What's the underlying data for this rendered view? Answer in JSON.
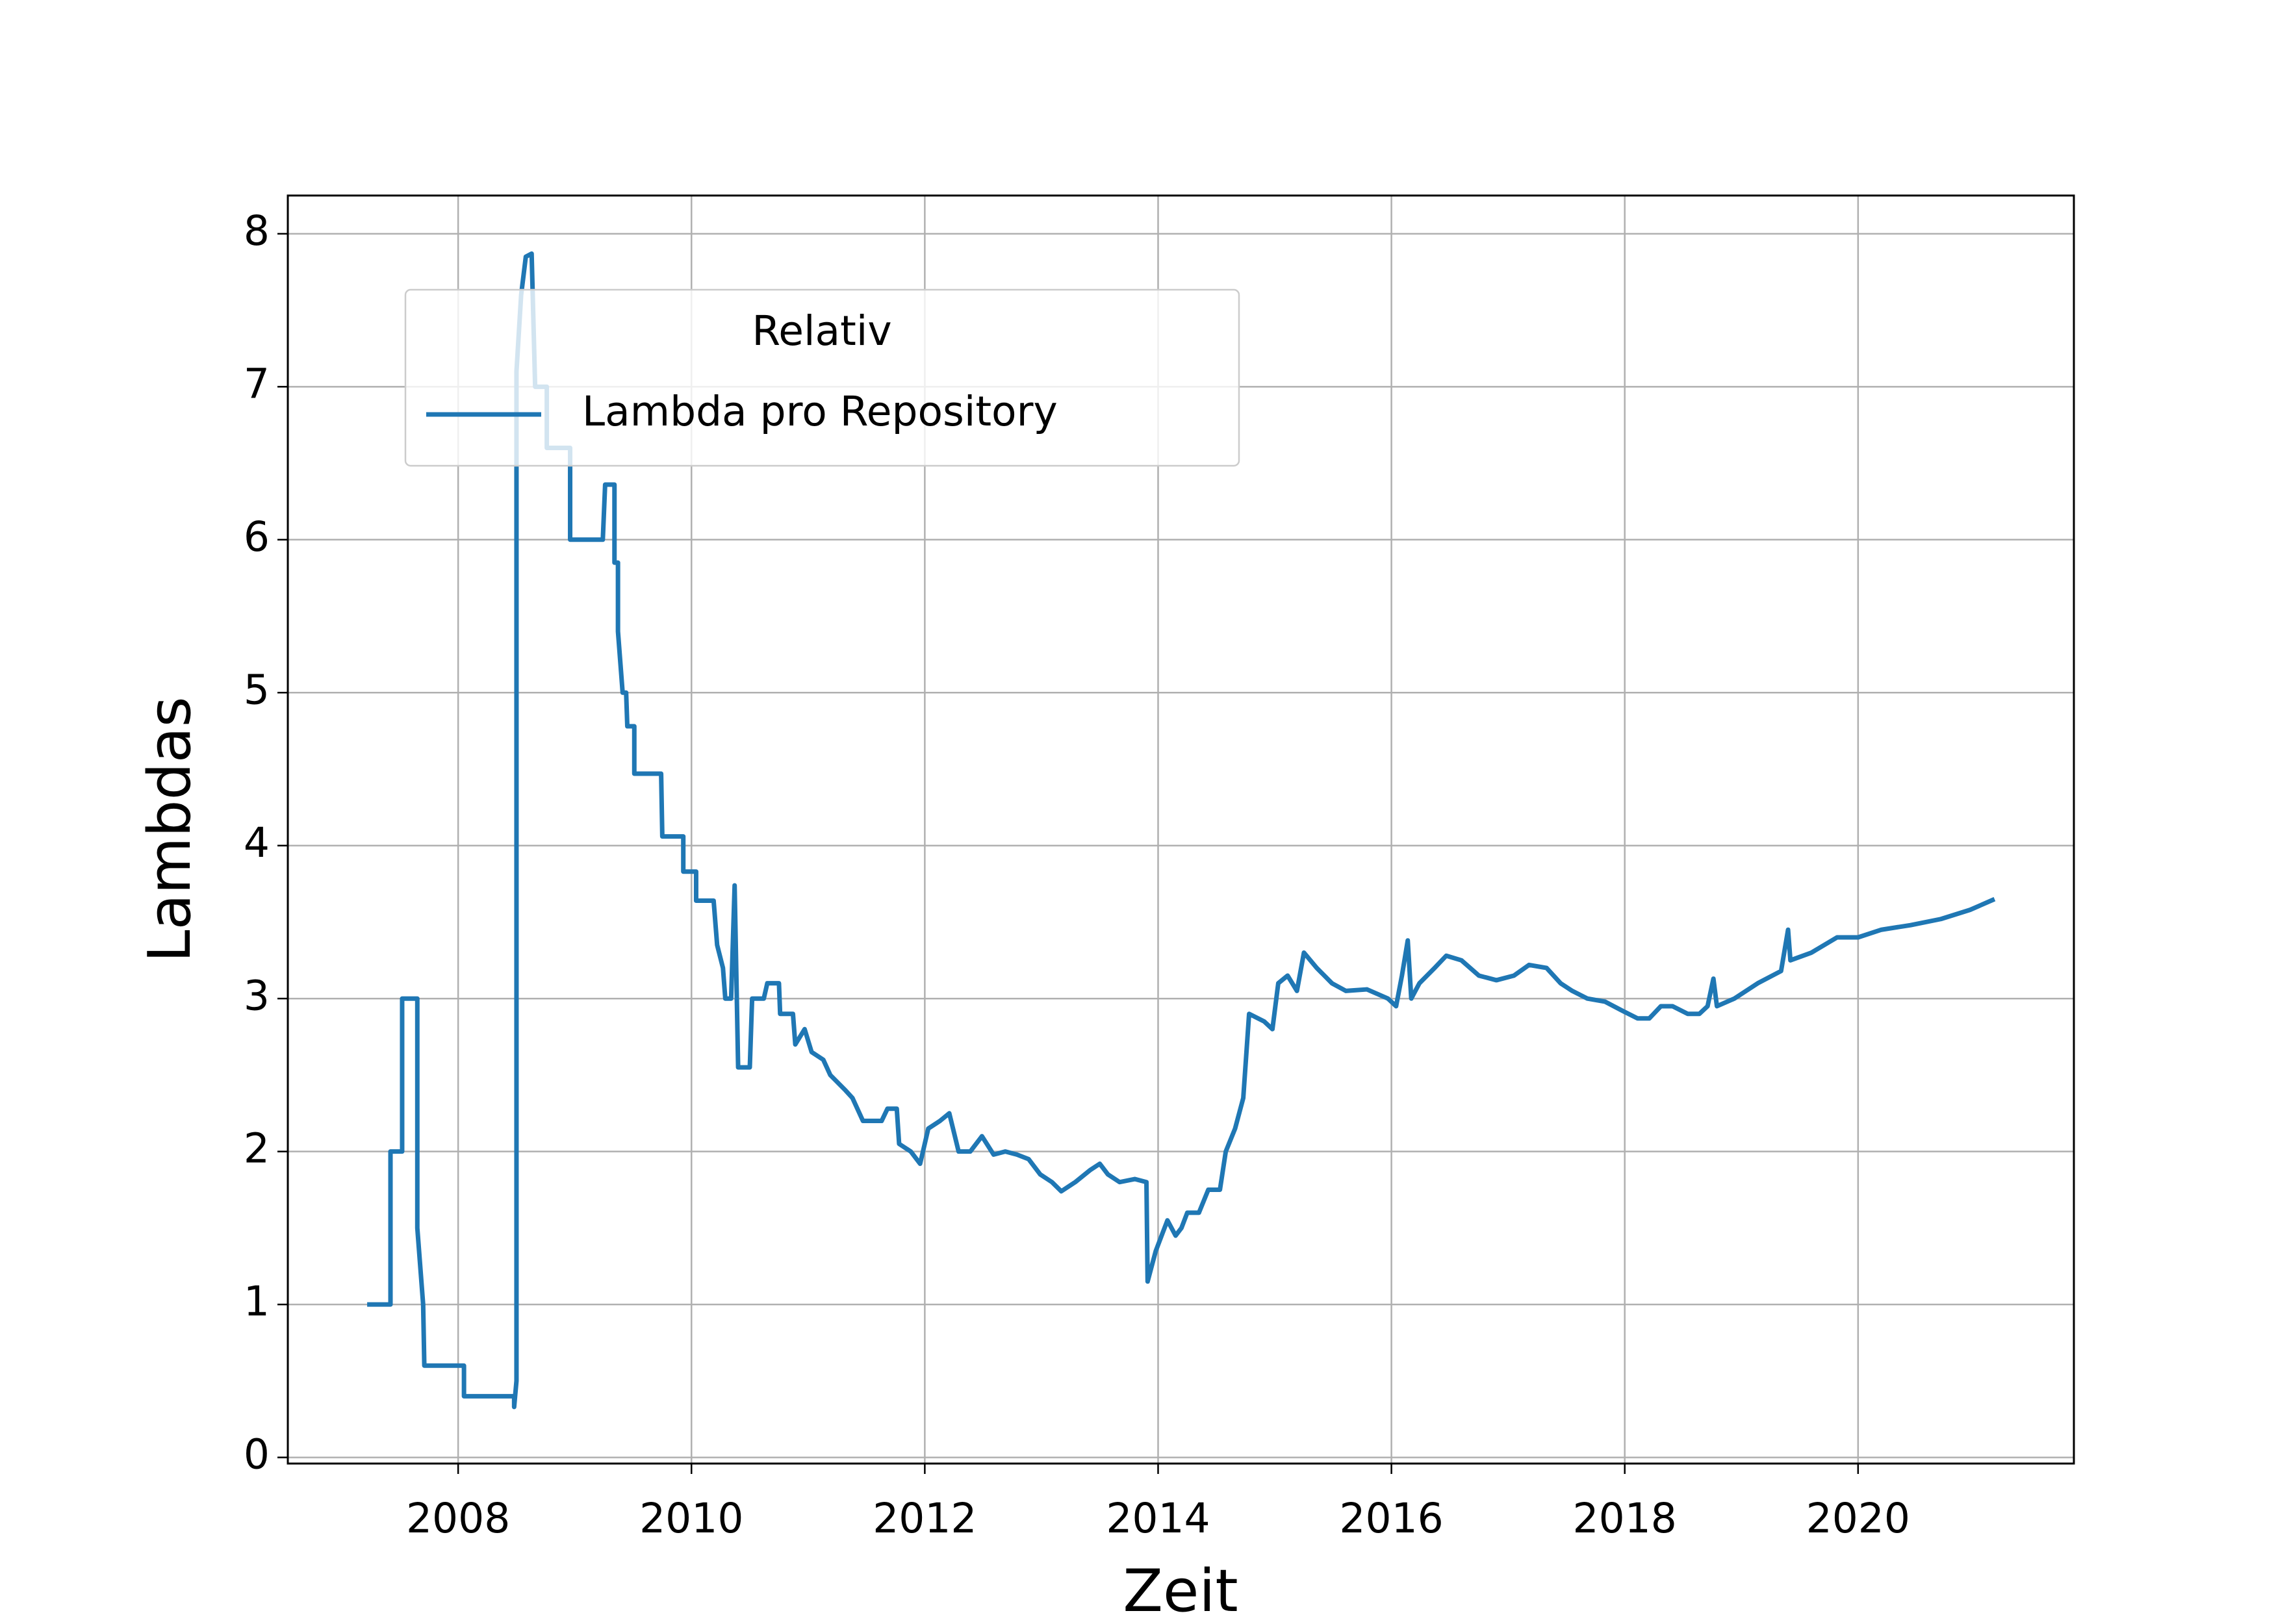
{
  "chart_data": {
    "type": "line",
    "xlabel": "Zeit",
    "ylabel": "Lambdas",
    "legend_title": "Relativ",
    "legend_loc": "upper left",
    "grid": true,
    "xlim": [
      2006.54,
      2021.85
    ],
    "ylim": [
      -0.04,
      8.25
    ],
    "xticks": [
      2008,
      2010,
      2012,
      2014,
      2016,
      2018,
      2020
    ],
    "yticks": [
      0,
      1,
      2,
      3,
      4,
      5,
      6,
      7,
      8
    ],
    "x": [
      2007.22,
      2007.42,
      2007.42,
      2007.52,
      2007.52,
      2007.65,
      2007.65,
      2007.7,
      2007.71,
      2008.05,
      2008.05,
      2008.48,
      2008.48,
      2008.5,
      2008.5,
      2008.54,
      2008.58,
      2008.63,
      2008.66,
      2008.76,
      2008.76,
      2008.96,
      2008.96,
      2009.24,
      2009.26,
      2009.34,
      2009.34,
      2009.37,
      2009.37,
      2009.41,
      2009.44,
      2009.45,
      2009.51,
      2009.51,
      2009.74,
      2009.75,
      2009.93,
      2009.93,
      2010.04,
      2010.04,
      2010.19,
      2010.22,
      2010.27,
      2010.29,
      2010.34,
      2010.37,
      2010.4,
      2010.5,
      2010.52,
      2010.62,
      2010.65,
      2010.75,
      2010.76,
      2010.87,
      2010.89,
      2010.97,
      2011.03,
      2011.13,
      2011.19,
      2011.32,
      2011.38,
      2011.47,
      2011.63,
      2011.68,
      2011.76,
      2011.78,
      2011.88,
      2011.96,
      2012.03,
      2012.13,
      2012.21,
      2012.29,
      2012.39,
      2012.49,
      2012.59,
      2012.69,
      2012.79,
      2012.89,
      2012.99,
      2013.09,
      2013.17,
      2013.29,
      2013.42,
      2013.5,
      2013.57,
      2013.67,
      2013.8,
      2013.9,
      2013.91,
      2013.98,
      2014.03,
      2014.08,
      2014.15,
      2014.2,
      2014.25,
      2014.35,
      2014.43,
      2014.53,
      2014.58,
      2014.66,
      2014.73,
      2014.78,
      2014.91,
      2014.98,
      2015.03,
      2015.11,
      2015.19,
      2015.25,
      2015.36,
      2015.49,
      2015.61,
      2015.79,
      2015.97,
      2016.04,
      2016.09,
      2016.14,
      2016.17,
      2016.24,
      2016.37,
      2016.47,
      2016.6,
      2016.75,
      2016.9,
      2017.05,
      2017.18,
      2017.33,
      2017.45,
      2017.55,
      2017.68,
      2017.83,
      2017.98,
      2018.11,
      2018.21,
      2018.31,
      2018.41,
      2018.54,
      2018.64,
      2018.71,
      2018.76,
      2018.79,
      2018.94,
      2019.14,
      2019.34,
      2019.4,
      2019.42,
      2019.6,
      2019.82,
      2020.0,
      2020.2,
      2020.45,
      2020.71,
      2020.96,
      2021.17
    ],
    "series": [
      {
        "name": "Lambda pro Repository",
        "color": "#1f77b4",
        "values": [
          1,
          1,
          2,
          2,
          3,
          3,
          1.5,
          1.0,
          0.6,
          0.6,
          0.4,
          0.4,
          0.33,
          0.5,
          7.1,
          7.6,
          7.85,
          7.87,
          7.0,
          7.0,
          6.6,
          6.6,
          6.0,
          6.0,
          6.36,
          6.36,
          5.85,
          5.85,
          5.4,
          5.0,
          5.0,
          4.78,
          4.78,
          4.47,
          4.47,
          4.06,
          4.06,
          3.83,
          3.83,
          3.64,
          3.64,
          3.35,
          3.2,
          3.0,
          3.0,
          3.74,
          2.55,
          2.55,
          3.0,
          3.0,
          3.1,
          3.1,
          2.9,
          2.9,
          2.7,
          2.8,
          2.65,
          2.6,
          2.5,
          2.4,
          2.35,
          2.2,
          2.2,
          2.28,
          2.28,
          2.05,
          2.0,
          1.92,
          2.15,
          2.2,
          2.25,
          2.0,
          2.0,
          2.1,
          1.98,
          2.0,
          1.98,
          1.95,
          1.85,
          1.8,
          1.74,
          1.8,
          1.88,
          1.92,
          1.85,
          1.8,
          1.82,
          1.8,
          1.15,
          1.35,
          1.45,
          1.55,
          1.45,
          1.5,
          1.6,
          1.6,
          1.75,
          1.75,
          2.0,
          2.15,
          2.35,
          2.9,
          2.85,
          2.8,
          3.1,
          3.15,
          3.05,
          3.3,
          3.2,
          3.1,
          3.05,
          3.06,
          3.0,
          2.95,
          3.15,
          3.38,
          3.0,
          3.1,
          3.2,
          3.28,
          3.25,
          3.15,
          3.12,
          3.15,
          3.22,
          3.2,
          3.1,
          3.05,
          3.0,
          2.98,
          2.92,
          2.87,
          2.87,
          2.95,
          2.95,
          2.9,
          2.9,
          2.95,
          3.13,
          2.95,
          3.0,
          3.1,
          3.18,
          3.45,
          3.25,
          3.3,
          3.4,
          3.4,
          3.45,
          3.48,
          3.52,
          3.58,
          3.65
        ]
      }
    ]
  }
}
